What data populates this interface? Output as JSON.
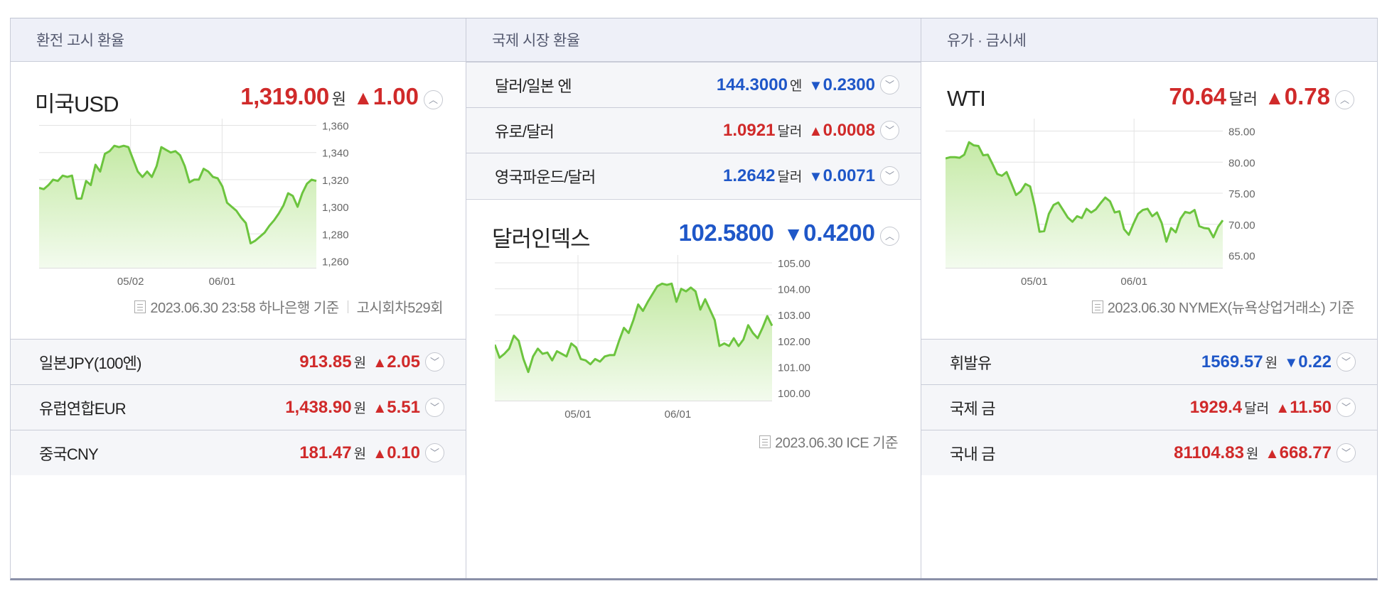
{
  "sections": {
    "exchange": {
      "header": "환전 고시 환율",
      "main": {
        "name": "미국USD",
        "value": "1,319.00",
        "unit": "원",
        "direction": "▲",
        "change": "1.00",
        "direction_color": "#d02a2a"
      },
      "chart_y_ticks": [
        "1,360",
        "1,340",
        "1,320",
        "1,300",
        "1,280",
        "1,260"
      ],
      "chart_x_ticks": [
        "05/02",
        "06/01"
      ],
      "footnote": {
        "date": "2023.06.30 23:58 하나은행 기준",
        "round": "고시회차529회"
      },
      "rows": [
        {
          "name": "일본JPY(100엔)",
          "value": "913.85",
          "unit": "원",
          "direction": "▲",
          "change": "2.05"
        },
        {
          "name": "유럽연합EUR",
          "value": "1,438.90",
          "unit": "원",
          "direction": "▲",
          "change": "5.51"
        },
        {
          "name": "중국CNY",
          "value": "181.47",
          "unit": "원",
          "direction": "▲",
          "change": "0.10"
        }
      ]
    },
    "international": {
      "header": "국제 시장 환율",
      "rows": [
        {
          "name": "달러/일본 엔",
          "value": "144.3000",
          "unit": "엔",
          "direction": "▼",
          "change": "0.2300"
        },
        {
          "name": "유로/달러",
          "value": "1.0921",
          "unit": "달러",
          "direction": "▲",
          "change": "0.0008"
        },
        {
          "name": "영국파운드/달러",
          "value": "1.2642",
          "unit": "달러",
          "direction": "▼",
          "change": "0.0071"
        }
      ],
      "main": {
        "name": "달러인덱스",
        "value": "102.5800",
        "direction": "▼",
        "change": "0.4200"
      },
      "chart_y_ticks": [
        "105.00",
        "104.00",
        "103.00",
        "102.00",
        "101.00",
        "100.00"
      ],
      "chart_x_ticks": [
        "05/01",
        "06/01"
      ],
      "footnote": {
        "date": "2023.06.30 ICE 기준"
      }
    },
    "oil": {
      "header": "유가 · 금시세",
      "main": {
        "name": "WTI",
        "value": "70.64",
        "unit": "달러",
        "direction": "▲",
        "change": "0.78"
      },
      "chart_y_ticks": [
        "85.00",
        "80.00",
        "75.00",
        "70.00",
        "65.00"
      ],
      "chart_x_ticks": [
        "05/01",
        "06/01"
      ],
      "footnote": {
        "date": "2023.06.30 NYMEX(뉴욕상업거래소) 기준"
      },
      "rows": [
        {
          "name": "휘발유",
          "value": "1569.57",
          "unit": "원",
          "direction": "▼",
          "change": "0.22"
        },
        {
          "name": "국제 금",
          "value": "1929.4",
          "unit": "달러",
          "direction": "▲",
          "change": "11.50"
        },
        {
          "name": "국내 금",
          "value": "81104.83",
          "unit": "원",
          "direction": "▲",
          "change": "668.77"
        }
      ]
    }
  },
  "colors": {
    "up": "#d02a2a",
    "down": "#1f57c8",
    "line": "#6cc43e",
    "fill_top": "#c5eaa6",
    "fill_bottom": "#f3fbee",
    "grid": "#e3e3e3"
  },
  "icons": {
    "expand": "chevron-up-icon",
    "collapse": "chevron-down-icon",
    "footnote": "document-icon"
  },
  "chart_data": [
    {
      "type": "area",
      "series": [
        {
          "values": [
            1314,
            1313,
            1316,
            1320,
            1319,
            1323,
            1322,
            1323,
            1306,
            1306,
            1319,
            1316,
            1331,
            1326,
            1339,
            1341,
            1345,
            1344,
            1345,
            1344,
            1335,
            1326,
            1322,
            1326,
            1322,
            1330,
            1344,
            1342,
            1340,
            1341,
            1338,
            1330,
            1318,
            1320,
            1320,
            1328,
            1326,
            1322,
            1321,
            1315,
            1303,
            1300,
            1297,
            1292,
            1288,
            1273,
            1275,
            1278,
            1281,
            1286,
            1290,
            1295,
            1301,
            1310,
            1308,
            1300,
            1310,
            1317,
            1320,
            1319
          ]
        }
      ],
      "ylim": [
        1255,
        1365
      ],
      "y_ticks": [
        1360,
        1340,
        1320,
        1300,
        1280,
        1260
      ]
    },
    {
      "type": "area",
      "series": [
        {
          "values": [
            101.85,
            101.35,
            101.5,
            101.7,
            102.2,
            102.0,
            101.3,
            100.8,
            101.4,
            101.7,
            101.5,
            101.55,
            101.25,
            101.6,
            101.5,
            101.4,
            101.9,
            101.75,
            101.3,
            101.25,
            101.1,
            101.3,
            101.2,
            101.4,
            101.45,
            101.45,
            102.0,
            102.5,
            102.3,
            102.8,
            103.4,
            103.15,
            103.5,
            103.8,
            104.1,
            104.2,
            104.15,
            104.2,
            103.5,
            104.0,
            103.9,
            104.05,
            103.9,
            103.2,
            103.6,
            103.2,
            102.8,
            101.8,
            101.9,
            101.8,
            102.1,
            101.8,
            102.05,
            102.6,
            102.3,
            102.1,
            102.5,
            102.95,
            102.58
          ]
        }
      ],
      "ylim": [
        99.7,
        105.3
      ],
      "y_ticks": [
        105.0,
        104.0,
        103.0,
        102.0,
        101.0,
        100.0
      ]
    },
    {
      "type": "area",
      "series": [
        {
          "values": [
            80.6,
            80.8,
            80.8,
            80.7,
            81.2,
            83.2,
            82.7,
            82.6,
            81.1,
            81.2,
            79.7,
            78.1,
            77.8,
            78.4,
            76.6,
            74.7,
            75.3,
            76.5,
            76.1,
            72.9,
            68.8,
            68.9,
            71.7,
            73.1,
            73.5,
            72.3,
            71.1,
            70.4,
            71.3,
            71.0,
            72.5,
            71.9,
            72.4,
            73.4,
            74.3,
            73.7,
            71.9,
            72.1,
            69.2,
            68.3,
            70.1,
            71.7,
            72.3,
            72.5,
            71.3,
            71.9,
            70.2,
            67.2,
            69.4,
            68.7,
            70.9,
            72.0,
            71.8,
            72.3,
            69.7,
            69.4,
            69.3,
            67.9,
            69.6,
            70.64
          ]
        }
      ],
      "ylim": [
        63,
        87
      ],
      "y_ticks": [
        85.0,
        80.0,
        75.0,
        70.0,
        65.0
      ]
    }
  ]
}
